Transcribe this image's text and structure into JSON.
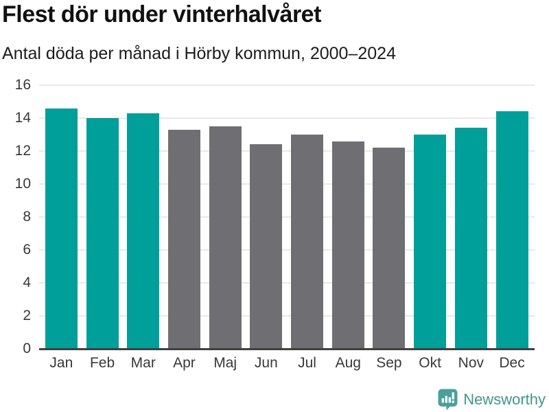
{
  "chart_data": {
    "type": "bar",
    "title": "Flest dör under vinterhalvåret",
    "subtitle": "Antal döda per månad i Hörby kommun, 2000–2024",
    "categories": [
      "Jan",
      "Feb",
      "Mar",
      "Apr",
      "Maj",
      "Jun",
      "Jul",
      "Aug",
      "Sep",
      "Okt",
      "Nov",
      "Dec"
    ],
    "values": [
      14.6,
      14.0,
      14.3,
      13.3,
      13.5,
      12.4,
      13.0,
      12.6,
      12.2,
      13.0,
      13.4,
      14.4
    ],
    "highlighted": [
      true,
      true,
      true,
      false,
      false,
      false,
      false,
      false,
      false,
      true,
      true,
      true
    ],
    "xlabel": "",
    "ylabel": "",
    "ylim": [
      0,
      16
    ],
    "yticks": [
      0,
      2,
      4,
      6,
      8,
      10,
      12,
      14,
      16
    ],
    "grid": true,
    "legend_position": "none",
    "colors": {
      "highlight_bar": "#009f9a",
      "muted_bar": "#6e6e73",
      "gridline": "#e8e8e8",
      "axis_line": "#3f3f3f",
      "axis_text": "#383838"
    }
  },
  "branding": {
    "label": "Newsworthy",
    "text_color": "#3e968f",
    "icon_color": "#4aa09a",
    "icon": "newsworthy-logo-icon"
  }
}
